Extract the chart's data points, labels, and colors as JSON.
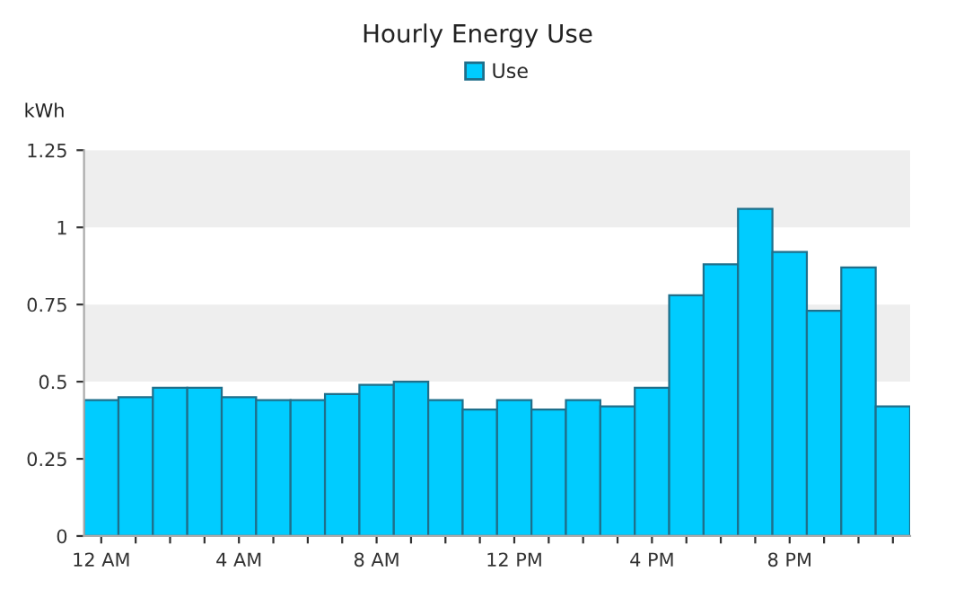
{
  "chart_data": {
    "type": "bar",
    "title": "Hourly Energy Use",
    "ylabel": "kWh",
    "categories": [
      "12 AM",
      null,
      null,
      null,
      "4 AM",
      null,
      null,
      null,
      "8 AM",
      null,
      null,
      null,
      "12 PM",
      null,
      null,
      null,
      "4 PM",
      null,
      null,
      null,
      "8 PM",
      null,
      null,
      null
    ],
    "series": [
      {
        "name": "Use",
        "color": "#00ccff",
        "values": [
          0.44,
          0.45,
          0.48,
          0.48,
          0.45,
          0.44,
          0.44,
          0.46,
          0.49,
          0.5,
          0.44,
          0.41,
          0.44,
          0.41,
          0.44,
          0.42,
          0.48,
          0.78,
          0.88,
          1.06,
          0.92,
          0.73,
          0.87,
          0.42
        ]
      }
    ],
    "ylim": [
      0,
      1.25
    ],
    "yticks": [
      0,
      0.25,
      0.5,
      0.75,
      1,
      1.25
    ],
    "bands": [
      {
        "axis": "y",
        "from": 0.5,
        "to": 0.75,
        "color": "#eeeeee"
      },
      {
        "axis": "y",
        "from": 1,
        "to": 1.25,
        "color": "#eeeeee"
      }
    ],
    "grid": false,
    "legend": "top"
  }
}
